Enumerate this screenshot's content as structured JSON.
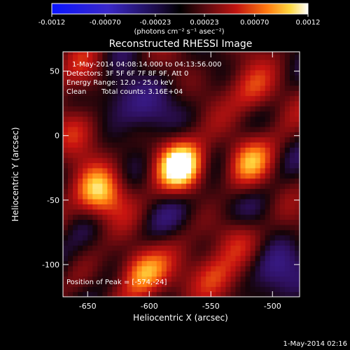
{
  "colors": {
    "background": "#000000",
    "foreground": "#ffffff",
    "colormap": "blue-black-red-yellow-white diverging"
  },
  "colorbar": {
    "ticks": [
      "-0.0012",
      "-0.00070",
      "-0.00023",
      "0.00023",
      "0.00070",
      "0.0012"
    ],
    "tick_values": [
      -0.0012,
      -0.0007,
      -0.00023,
      0.00023,
      0.0007,
      0.0012
    ],
    "unit_label": "(photons cm⁻² s⁻¹ asec⁻²)",
    "range": [
      -0.0012,
      0.0012
    ]
  },
  "chart_data": {
    "type": "heatmap",
    "title": "Reconstructed RHESSI Image",
    "xlabel": "Heliocentric X (arcsec)",
    "ylabel": "Heliocentric Y (arcsec)",
    "xlim": [
      -670,
      -478
    ],
    "ylim": [
      -125,
      65
    ],
    "xticks": [
      -650,
      -600,
      -550,
      -500
    ],
    "yticks": [
      50,
      0,
      -50,
      -100
    ],
    "xtick_labels": [
      "-650",
      "-600",
      "-550",
      "-500"
    ],
    "ytick_labels": [
      "50",
      "0",
      "-50",
      "-100"
    ],
    "peak": {
      "x": -574,
      "y": -24
    },
    "sources": [
      {
        "x": -574,
        "y": -24,
        "value": 0.0012
      },
      {
        "x": -640,
        "y": -45,
        "value": 0.00095
      },
      {
        "x": -607,
        "y": -105,
        "value": 0.00085
      },
      {
        "x": -520,
        "y": -20,
        "value": 0.0006
      },
      {
        "x": -548,
        "y": -108,
        "value": 0.0006
      },
      {
        "x": -515,
        "y": 35,
        "value": 0.0005
      },
      {
        "x": -650,
        "y": 45,
        "value": 0.0004
      },
      {
        "x": -660,
        "y": 5,
        "value": 0.0004
      },
      {
        "x": -530,
        "y": -80,
        "value": 0.0004
      }
    ],
    "negative_regions": [
      {
        "x": -605,
        "y": 20,
        "value": -0.0004
      },
      {
        "x": -630,
        "y": 35,
        "value": -0.00035
      },
      {
        "x": -500,
        "y": -105,
        "value": -0.0005
      },
      {
        "x": -545,
        "y": -55,
        "value": -0.0003
      },
      {
        "x": -650,
        "y": -95,
        "value": -0.0002
      },
      {
        "x": -600,
        "y": -60,
        "value": -0.00015
      }
    ]
  },
  "annotations": {
    "time_range": "1-May-2014 04:08:14.000 to 04:13:56.000",
    "detectors": "Detectors: 3F 5F 6F 7F 8F 9F, Att 0",
    "energy_range": "Energy Range: 12.0 - 25.0 keV",
    "algorithm": "Clean",
    "total_counts": "Total counts: 3.16E+04",
    "peak_position": "Position of Peak = [-574,-24]"
  },
  "footer": {
    "timestamp": "1-May-2014 02:16"
  }
}
